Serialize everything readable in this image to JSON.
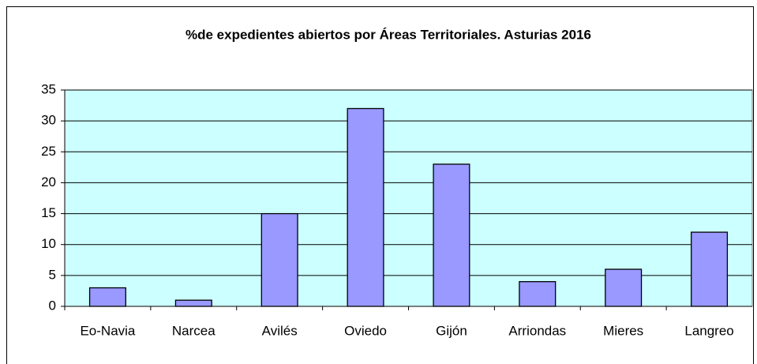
{
  "chart_data": {
    "type": "bar",
    "title": "%de expedientes abiertos por Áreas Territoriales. Asturias 2016",
    "categories": [
      "Eo-Navia",
      "Narcea",
      "Avilés",
      "Oviedo",
      "Gijón",
      "Arriondas",
      "Mieres",
      "Langreo"
    ],
    "values": [
      3,
      1,
      15,
      32,
      23,
      4,
      6,
      12
    ],
    "color": "#9999ff",
    "ylim": [
      0,
      35
    ],
    "yticks": [
      0,
      5,
      10,
      15,
      20,
      25,
      30,
      35
    ],
    "grid": true
  }
}
